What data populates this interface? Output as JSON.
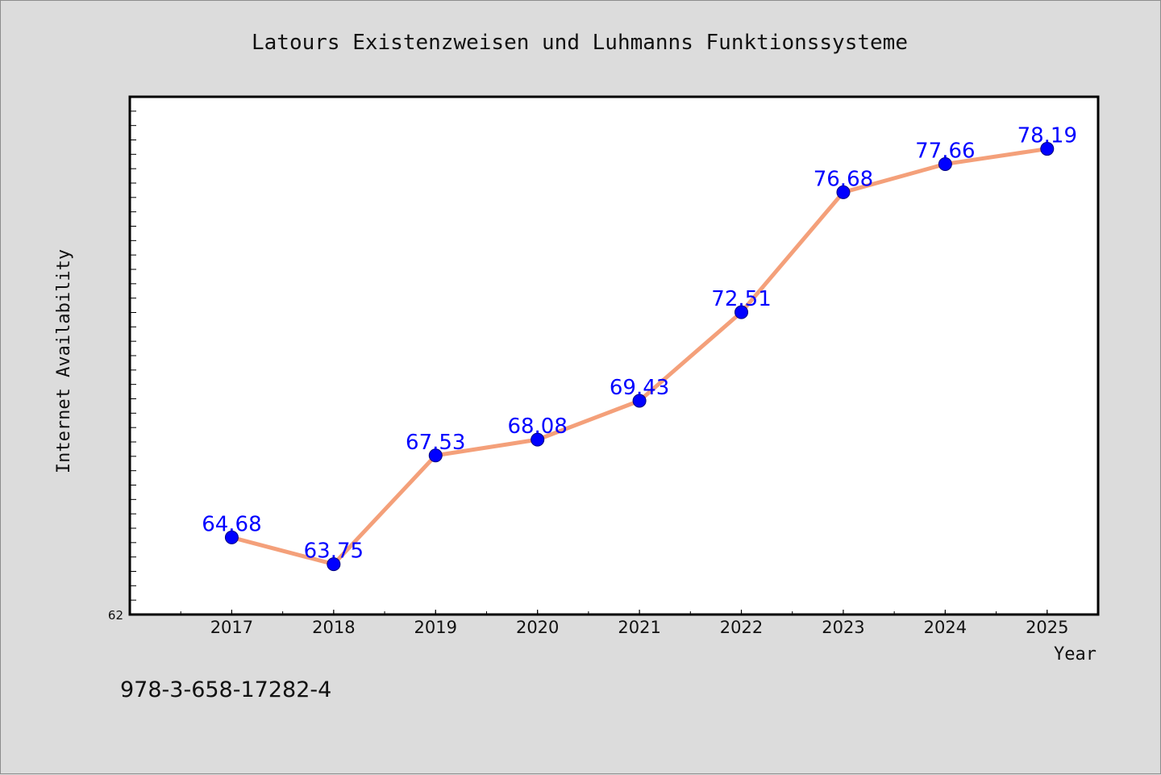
{
  "footer": {
    "isbn": "978-3-658-17282-4"
  },
  "chart_data": {
    "type": "line",
    "title": "Latours Existenzweisen und Luhmanns Funktionssysteme",
    "xlabel": "Year",
    "ylabel": "Internet Availability",
    "categories": [
      "2017",
      "2018",
      "2019",
      "2020",
      "2021",
      "2022",
      "2023",
      "2024",
      "2025"
    ],
    "series": [
      {
        "values": [
          64.68,
          63.75,
          67.53,
          68.08,
          69.43,
          72.51,
          76.68,
          77.66,
          78.19
        ]
      }
    ],
    "y_tick_labels": [
      "62"
    ],
    "ylim": [
      62,
      80
    ],
    "xlim": [
      2016,
      2025.5
    ],
    "grid": false,
    "legend": "none",
    "colors": {
      "line": "#f4a07a",
      "marker": "#0000ff",
      "labels": "#0000ff",
      "background": "#dcdcdc",
      "plot_background": "#ffffff"
    }
  }
}
